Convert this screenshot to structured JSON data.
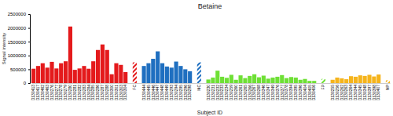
{
  "chart_data": {
    "type": "bar",
    "title": "Betaine",
    "x_label": "Subject ID",
    "y_label": "Signal intensity",
    "categories": [
      "D130413",
      "D130417",
      "D130462",
      "D130463",
      "D130276",
      "D130277",
      "D130278",
      "D130279",
      "D130280",
      "D130281",
      "D130282",
      "D130283",
      "D130284",
      "D130285",
      "D130286",
      "D130287",
      "D130288",
      "D130300",
      "D130301",
      "D130303",
      "D130304",
      null,
      "FC",
      null,
      "D130444",
      "D130445",
      "D130446",
      "D130447",
      "D130448",
      "D130449",
      "D130293",
      "D130294",
      "D130295",
      "D130296",
      "D130298",
      null,
      "MC",
      null,
      "D130230",
      "D130231",
      "D130232",
      "D130233",
      "D130234",
      "D130259",
      "D130260",
      "D130261",
      "D130265",
      "D130266",
      "D130267",
      "D130268",
      "D130346",
      "D130347",
      "D130349",
      "D130376",
      "D130377",
      "D130378",
      "D130394",
      "D130395",
      "D130396",
      "D130404",
      "D130405",
      "D130406",
      null,
      "FP",
      null,
      "D130255",
      "D130256",
      "D130262",
      "D130263",
      "D130264",
      "D130344",
      "D130345",
      "D130348",
      "D130397",
      "D130398",
      "D130407",
      null,
      "MP"
    ],
    "series": [
      {
        "line_style": "solid",
        "values": [
          520000,
          620000,
          720000,
          560000,
          770000,
          530000,
          720000,
          790000,
          2050000,
          480000,
          530000,
          620000,
          520000,
          790000,
          1200000,
          1400000,
          1200000,
          320000,
          720000,
          660000,
          400000,
          null,
          null,
          null,
          620000,
          720000,
          880000,
          1150000,
          720000,
          600000,
          560000,
          780000,
          620000,
          500000,
          430000,
          null,
          null,
          null,
          130000,
          200000,
          450000,
          230000,
          190000,
          300000,
          120000,
          280000,
          180000,
          260000,
          320000,
          210000,
          270000,
          160000,
          200000,
          230000,
          290000,
          180000,
          220000,
          200000,
          120000,
          150000,
          80000,
          80000,
          null,
          null,
          null,
          120000,
          200000,
          170000,
          140000,
          250000,
          230000,
          280000,
          260000,
          300000,
          240000,
          310000,
          null,
          null
        ]
      },
      {
        "line_style": "hatched",
        "values": [
          null,
          null,
          null,
          null,
          null,
          null,
          null,
          null,
          null,
          null,
          null,
          null,
          null,
          null,
          null,
          null,
          null,
          null,
          null,
          null,
          null,
          null,
          750000,
          null,
          null,
          null,
          null,
          null,
          null,
          null,
          null,
          null,
          null,
          null,
          null,
          null,
          750000,
          null,
          null,
          null,
          null,
          null,
          null,
          null,
          null,
          null,
          null,
          null,
          null,
          null,
          null,
          null,
          null,
          null,
          null,
          null,
          null,
          null,
          null,
          null,
          null,
          null,
          null,
          150000,
          null,
          null,
          null,
          null,
          null,
          null,
          null,
          null,
          null,
          null,
          null,
          null,
          null,
          100000
        ]
      }
    ],
    "colors": [
      "#e41a1c",
      "#e41a1c",
      "#e41a1c",
      "#e41a1c",
      "#e41a1c",
      "#e41a1c",
      "#e41a1c",
      "#e41a1c",
      "#e41a1c",
      "#e41a1c",
      "#e41a1c",
      "#e41a1c",
      "#e41a1c",
      "#e41a1c",
      "#e41a1c",
      "#e41a1c",
      "#e41a1c",
      "#e41a1c",
      "#e41a1c",
      "#e41a1c",
      "#e41a1c",
      "#e41a1c",
      "#e41a1c",
      "#e41a1c",
      "#1f6fc0",
      "#1f6fc0",
      "#1f6fc0",
      "#1f6fc0",
      "#1f6fc0",
      "#1f6fc0",
      "#1f6fc0",
      "#1f6fc0",
      "#1f6fc0",
      "#1f6fc0",
      "#1f6fc0",
      "#1f6fc0",
      "#1f6fc0",
      "#1f6fc0",
      "#6ee035",
      "#6ee035",
      "#6ee035",
      "#6ee035",
      "#6ee035",
      "#6ee035",
      "#6ee035",
      "#6ee035",
      "#6ee035",
      "#6ee035",
      "#6ee035",
      "#6ee035",
      "#6ee035",
      "#6ee035",
      "#6ee035",
      "#6ee035",
      "#6ee035",
      "#6ee035",
      "#6ee035",
      "#6ee035",
      "#6ee035",
      "#6ee035",
      "#6ee035",
      "#6ee035",
      "#6ee035",
      "#6ee035",
      "#6ee035",
      "#f5b41c",
      "#f5b41c",
      "#f5b41c",
      "#f5b41c",
      "#f5b41c",
      "#f5b41c",
      "#f5b41c",
      "#f5b41c",
      "#f5b41c",
      "#f5b41c",
      "#f5b41c",
      "#f5b41c",
      "#f5b41c"
    ],
    "ylim": [
      0,
      2500000
    ],
    "yticks": [
      0,
      500000,
      1000000,
      1500000,
      2000000,
      2500000
    ],
    "grid": false
  }
}
